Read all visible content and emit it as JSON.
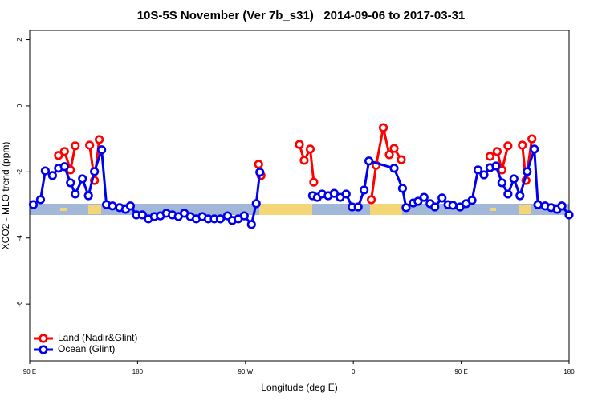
{
  "chart_data": {
    "type": "line",
    "title": "10S-5S November (Ver 7b_s31)   2014-09-06 to 2017-03-31",
    "x_label": "Longitude (deg E)",
    "y_label": "XCO2 - MLO trend (ppm)",
    "xlim": [
      90,
      540
    ],
    "ylim": [
      -7.72,
      2.28
    ],
    "xticks": [
      {
        "value": 90,
        "label": "90 E"
      },
      180,
      {
        "value": 270,
        "label": "90 W"
      },
      {
        "value": 360,
        "label": "0"
      },
      {
        "value": 450,
        "label": "90 E"
      },
      {
        "value": 540,
        "label": "180"
      }
    ],
    "yticks": [
      -6,
      -4,
      -2,
      0,
      2
    ],
    "legend": "bottomleft",
    "series": [
      {
        "name": "Land (Nadir&Glint)",
        "color": "#ff0000",
        "x": [
          114,
          119,
          124,
          128,
          null,
          140,
          144,
          148,
          null,
          281,
          283,
          null,
          315,
          319,
          324,
          327,
          null,
          375,
          379,
          385,
          390,
          394,
          400,
          null,
          474,
          480,
          484,
          489,
          null,
          501,
          504,
          509
        ],
        "values": [
          -1.5,
          -1.38,
          -1.94,
          -1.21,
          null,
          -1.19,
          -2.26,
          -1.02,
          null,
          -1.77,
          -2.11,
          null,
          -1.17,
          -1.65,
          -1.31,
          -2.31,
          null,
          -2.84,
          -1.8,
          -0.66,
          -1.48,
          -1.29,
          -1.63,
          null,
          -1.53,
          -1.38,
          -1.94,
          -1.21,
          null,
          -1.19,
          -2.26,
          -1.0
        ]
      },
      {
        "name": "Ocean (Glint)",
        "color": "#0000ee",
        "x": [
          93,
          99,
          103,
          109,
          114,
          119,
          124,
          128,
          134,
          139,
          144,
          150,
          154,
          159,
          165,
          170,
          174,
          179,
          184,
          189,
          194,
          199,
          204,
          209,
          214,
          219,
          224,
          229,
          234,
          239,
          244,
          249,
          255,
          259,
          264,
          269,
          275,
          279,
          282,
          null,
          326,
          330,
          334,
          339,
          344,
          349,
          354,
          359,
          364,
          369,
          373,
          394,
          401,
          404,
          410,
          414,
          419,
          424,
          428,
          434,
          439,
          443,
          449,
          454,
          459,
          464,
          469,
          474,
          479,
          484,
          489,
          494,
          499,
          505,
          511,
          514,
          520,
          525,
          530,
          534,
          540
        ],
        "values": [
          -2.99,
          -2.84,
          -1.97,
          -2.11,
          -1.89,
          -1.84,
          -2.33,
          -2.67,
          -2.21,
          -2.72,
          -1.99,
          -1.33,
          -2.99,
          -3.03,
          -3.08,
          -3.13,
          -3.03,
          -3.3,
          -3.3,
          -3.42,
          -3.35,
          -3.33,
          -3.25,
          -3.3,
          -3.35,
          -3.25,
          -3.35,
          -3.42,
          -3.35,
          -3.42,
          -3.42,
          -3.42,
          -3.33,
          -3.47,
          -3.42,
          -3.33,
          -3.59,
          -2.96,
          -2.01,
          null,
          -2.72,
          -2.77,
          -2.67,
          -2.72,
          -2.65,
          -2.77,
          -2.67,
          -3.06,
          -3.06,
          -2.55,
          -1.67,
          -1.89,
          -2.5,
          -3.08,
          -2.94,
          -2.89,
          -2.77,
          -2.96,
          -3.06,
          -2.79,
          -2.99,
          -3.01,
          -3.06,
          -2.96,
          -2.86,
          -1.94,
          -2.09,
          -1.87,
          -1.82,
          -2.33,
          -2.67,
          -2.21,
          -2.72,
          -1.99,
          -1.31,
          -2.99,
          -3.03,
          -3.08,
          -3.13,
          -3.03,
          -3.3
        ]
      }
    ]
  }
}
